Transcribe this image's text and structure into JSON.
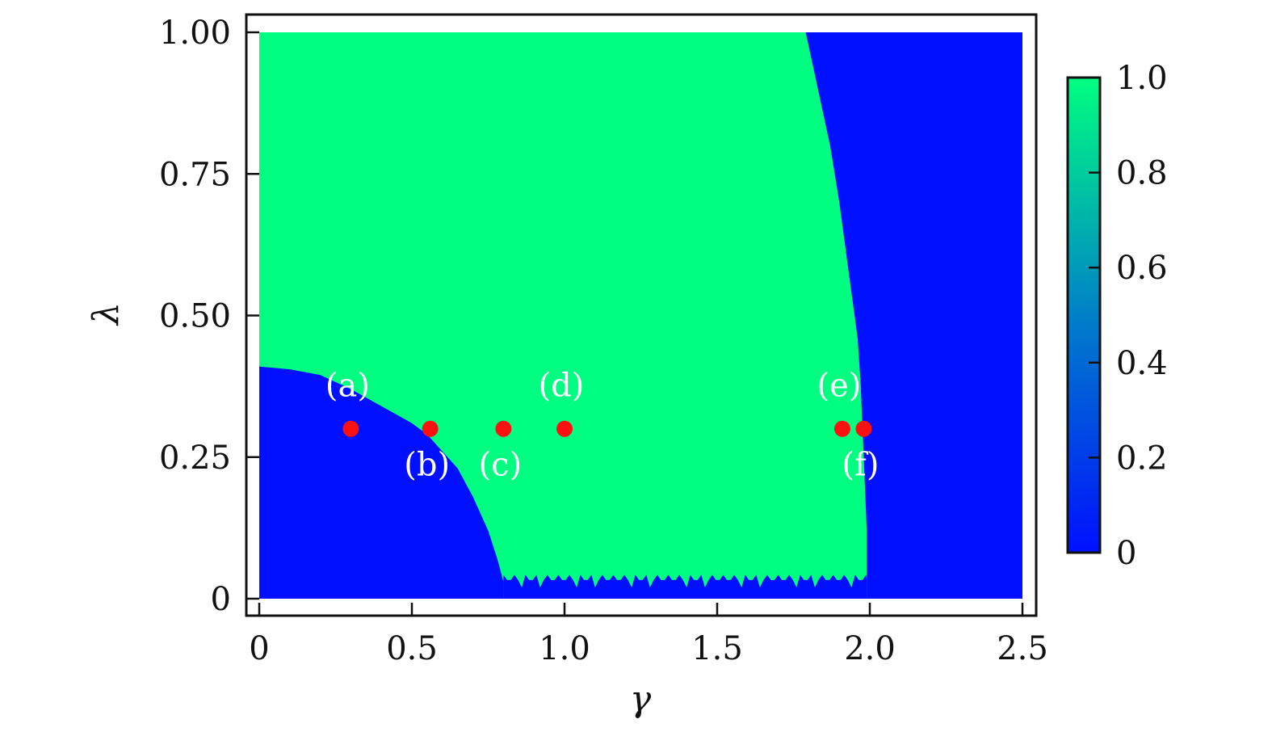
{
  "chart_data": {
    "type": "heatmap",
    "title": "",
    "xlabel": "γ",
    "ylabel": "λ",
    "xlim": [
      0,
      2.5
    ],
    "ylim": [
      0,
      1.0
    ],
    "x_ticks": [
      {
        "value": 0,
        "label": "0"
      },
      {
        "value": 0.5,
        "label": "0.5"
      },
      {
        "value": 1.0,
        "label": "1.0"
      },
      {
        "value": 1.5,
        "label": "1.5"
      },
      {
        "value": 2.0,
        "label": "2.0"
      },
      {
        "value": 2.5,
        "label": "2.5"
      }
    ],
    "y_ticks": [
      {
        "value": 0,
        "label": "0"
      },
      {
        "value": 0.25,
        "label": "0.25"
      },
      {
        "value": 0.5,
        "label": "0.50"
      },
      {
        "value": 0.75,
        "label": "0.75"
      },
      {
        "value": 1.0,
        "label": "1.00"
      }
    ],
    "colorbar": {
      "range": [
        0,
        1.0
      ],
      "colors": [
        "#0010ff",
        "#00ff80"
      ],
      "ticks": [
        {
          "value": 0,
          "label": "0"
        },
        {
          "value": 0.2,
          "label": "0.2"
        },
        {
          "value": 0.4,
          "label": "0.4"
        },
        {
          "value": 0.6,
          "label": "0.6"
        },
        {
          "value": 0.8,
          "label": "0.8"
        },
        {
          "value": 1.0,
          "label": "1.0"
        }
      ]
    },
    "regions": {
      "background_value": 1.0,
      "low_left_boundary": [
        [
          0,
          0.41
        ],
        [
          0.1,
          0.405
        ],
        [
          0.2,
          0.395
        ],
        [
          0.3,
          0.37
        ],
        [
          0.4,
          0.34
        ],
        [
          0.5,
          0.31
        ],
        [
          0.55,
          0.29
        ],
        [
          0.6,
          0.26
        ],
        [
          0.65,
          0.23
        ],
        [
          0.7,
          0.18
        ],
        [
          0.75,
          0.12
        ],
        [
          0.78,
          0.07
        ],
        [
          0.8,
          0.03
        ]
      ],
      "low_right_boundary": [
        [
          1.79,
          1.0
        ],
        [
          1.83,
          0.9
        ],
        [
          1.87,
          0.8
        ],
        [
          1.9,
          0.7
        ],
        [
          1.93,
          0.58
        ],
        [
          1.96,
          0.46
        ],
        [
          1.97,
          0.38
        ],
        [
          1.98,
          0.25
        ],
        [
          1.99,
          0.12
        ],
        [
          1.99,
          0.0
        ]
      ],
      "bottom_strip_top": 0.03,
      "bottom_strip_x": [
        0.8,
        1.99
      ]
    },
    "points": [
      {
        "label": "(a)",
        "x": 0.3,
        "y": 0.3,
        "label_pos": "above"
      },
      {
        "label": "(b)",
        "x": 0.56,
        "y": 0.3,
        "label_pos": "below"
      },
      {
        "label": "(c)",
        "x": 0.8,
        "y": 0.3,
        "label_pos": "below"
      },
      {
        "label": "(d)",
        "x": 1.0,
        "y": 0.3,
        "label_pos": "above"
      },
      {
        "label": "(e)",
        "x": 1.91,
        "y": 0.3,
        "label_pos": "above"
      },
      {
        "label": "(f)",
        "x": 1.98,
        "y": 0.3,
        "label_pos": "below"
      }
    ],
    "point_color": "#ff1010",
    "grid": false
  }
}
